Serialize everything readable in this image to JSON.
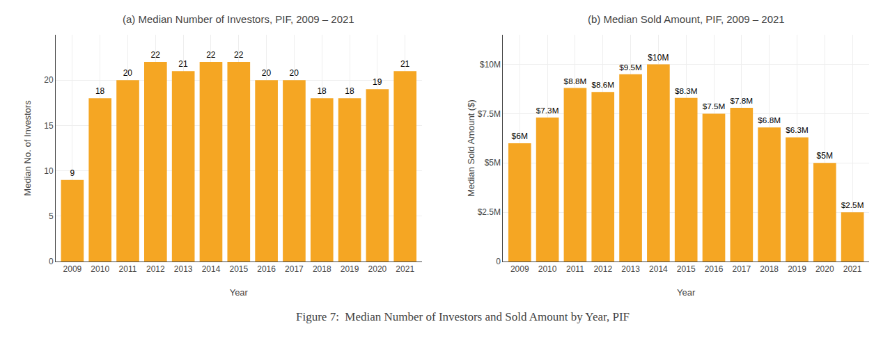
{
  "chart_data": [
    {
      "type": "bar",
      "title": "(a) Median Number of Investors, PIF, 2009 – 2021",
      "xlabel": "Year",
      "ylabel": "Median No. of Investors",
      "categories": [
        "2009",
        "2010",
        "2011",
        "2012",
        "2013",
        "2014",
        "2015",
        "2016",
        "2017",
        "2018",
        "2019",
        "2020",
        "2021"
      ],
      "values": [
        9,
        18,
        20,
        22,
        21,
        22,
        22,
        20,
        20,
        18,
        18,
        19,
        21
      ],
      "color": "#F5A623",
      "ylim": [
        0,
        25
      ],
      "yticks": [
        0,
        5,
        10,
        15,
        20
      ],
      "grid": true,
      "data_labels": true
    },
    {
      "type": "bar",
      "title": "(b) Median Sold Amount, PIF, 2009 – 2021",
      "xlabel": "Year",
      "ylabel": "Median Sold Amount ($)",
      "categories": [
        "2009",
        "2010",
        "2011",
        "2012",
        "2013",
        "2014",
        "2015",
        "2016",
        "2017",
        "2018",
        "2019",
        "2020",
        "2021"
      ],
      "values": [
        6000000,
        7300000,
        8800000,
        8600000,
        9500000,
        10000000,
        8300000,
        7500000,
        7800000,
        6800000,
        6300000,
        5000000,
        2500000
      ],
      "value_labels": [
        "$6M",
        "$7.3M",
        "$8.8M",
        "$8.6M",
        "$9.5M",
        "$10M",
        "$8.3M",
        "$7.5M",
        "$7.8M",
        "$6.8M",
        "$6.3M",
        "$5M",
        "$2.5M"
      ],
      "color": "#F5A623",
      "ylim": [
        0,
        11500000
      ],
      "yticks": [
        0,
        {
          "value": 2500000,
          "label": "$2.5M"
        },
        {
          "value": 5000000,
          "label": "$5M"
        },
        {
          "value": 7500000,
          "label": "$7.5M"
        },
        {
          "value": 10000000,
          "label": "$10M"
        }
      ],
      "grid": true,
      "data_labels": true
    }
  ],
  "caption": "Figure 7:  Median Number of Investors and Sold Amount by Year, PIF"
}
